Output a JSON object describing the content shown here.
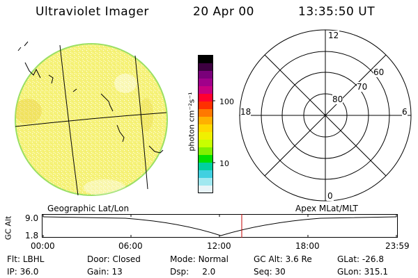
{
  "header": {
    "instrument": "Ultraviolet Imager",
    "date": "20 Apr 00",
    "time": "13:35:50 UT"
  },
  "colorbar": {
    "unit_label": "photon cm⁻²s⁻¹",
    "ticks": [
      "100",
      "10"
    ],
    "colors": [
      "#000000",
      "#3d0040",
      "#7a007a",
      "#a0008a",
      "#c80080",
      "#ff0030",
      "#ff3000",
      "#ff7800",
      "#ffb000",
      "#ffd800",
      "#f0f000",
      "#c8ff00",
      "#80f000",
      "#00e000",
      "#00d0a0",
      "#40d0e0",
      "#a0e8f0",
      "#e8f4f8"
    ]
  },
  "disk": {
    "fill_color": "#f4f070",
    "rim_color": "#9adf64"
  },
  "polar": {
    "clock_labels": {
      "top": "12",
      "left": "18",
      "right": "6",
      "bottom": "0"
    },
    "lat_labels": [
      "80",
      "70",
      "60"
    ]
  },
  "timeline": {
    "left_title": "Geographic Lat/Lon",
    "right_title": "Apex MLat/MLT",
    "axis_label": "GC Alt",
    "y_ticks": [
      "9.0",
      "1.8"
    ],
    "x_ticks": [
      "00:00",
      "06:00",
      "12:00",
      "18:00",
      "23:59"
    ],
    "marker_color": "#c00000"
  },
  "status": {
    "row1": [
      {
        "label": "Flt:",
        "value": "LBHL"
      },
      {
        "label": "Door:",
        "value": "Closed"
      },
      {
        "label": "Mode:",
        "value": "Normal"
      },
      {
        "label": "GC Alt:",
        "value": "3.6 Re"
      },
      {
        "label": "GLat:",
        "value": "-26.8"
      }
    ],
    "row2": [
      {
        "label": "IP:",
        "value": "36.0"
      },
      {
        "label": "Gain:",
        "value": "13"
      },
      {
        "label": "Dsp:",
        "value": "2.0"
      },
      {
        "label": "Seq:",
        "value": "30"
      },
      {
        "label": "GLon:",
        "value": "315.1"
      }
    ]
  }
}
